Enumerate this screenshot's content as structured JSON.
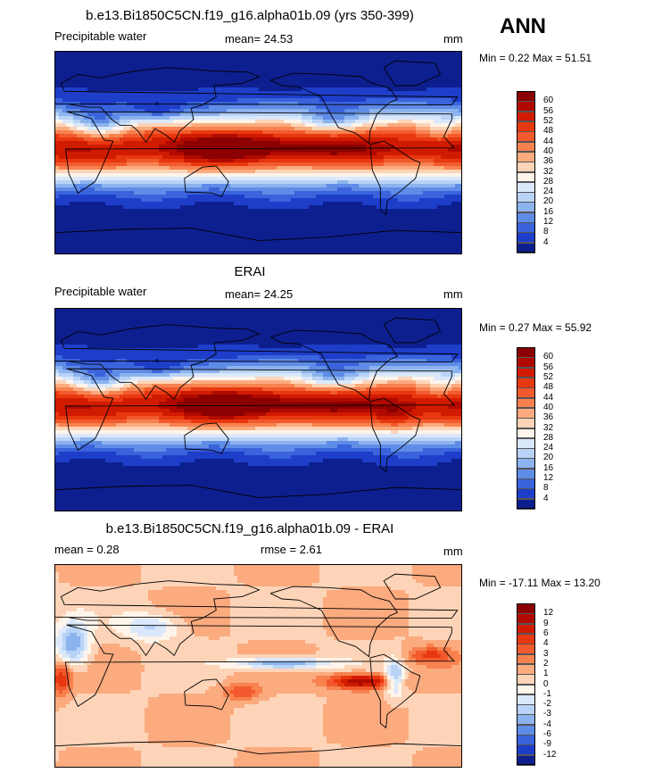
{
  "season": "ANN",
  "panels": [
    {
      "title": "b.e13.Bi1850C5CN.f19_g16.alpha01b.09 (yrs 350-399)",
      "left_label": "Precipitable water",
      "mid_label": "mean=  24.53",
      "units": "mm",
      "minmax": "Min =   0.22 Max =  51.51",
      "colorbar": {
        "labels": [
          "60",
          "56",
          "52",
          "48",
          "44",
          "40",
          "36",
          "32",
          "28",
          "24",
          "20",
          "16",
          "12",
          "8",
          "4"
        ],
        "colors": [
          "#8b0000",
          "#b00a00",
          "#d11b00",
          "#e8380f",
          "#f25a2d",
          "#f7824f",
          "#fbab7e",
          "#fdd4b8",
          "#fff4ea",
          "#dbe8fb",
          "#b8d3f6",
          "#8db3ef",
          "#5f8ce6",
          "#3a63dc",
          "#1e3ec9",
          "#0d1f8f"
        ]
      },
      "map_kind": "model"
    },
    {
      "title": "ERAI",
      "left_label": "Precipitable water",
      "mid_label": "mean=  24.25",
      "units": "mm",
      "minmax": "Min =   0.27 Max =  55.92",
      "colorbar": {
        "labels": [
          "60",
          "56",
          "52",
          "48",
          "44",
          "40",
          "36",
          "32",
          "28",
          "24",
          "20",
          "16",
          "12",
          "8",
          "4"
        ],
        "colors": [
          "#8b0000",
          "#b00a00",
          "#d11b00",
          "#e8380f",
          "#f25a2d",
          "#f7824f",
          "#fbab7e",
          "#fdd4b8",
          "#fff4ea",
          "#dbe8fb",
          "#b8d3f6",
          "#8db3ef",
          "#5f8ce6",
          "#3a63dc",
          "#1e3ec9",
          "#0d1f8f"
        ]
      },
      "map_kind": "obs"
    },
    {
      "title": "b.e13.Bi1850C5CN.f19_g16.alpha01b.09 - ERAI",
      "left_label": "mean =   0.28",
      "mid_label": "rmse =   2.61",
      "units": "mm",
      "minmax": "Min = -17.11 Max =  13.20",
      "colorbar": {
        "labels": [
          "12",
          "9",
          "6",
          "4",
          "3",
          "2",
          "1",
          "0",
          "-1",
          "-2",
          "-3",
          "-4",
          "-6",
          "-9",
          "-12"
        ],
        "colors": [
          "#8b0000",
          "#b00a00",
          "#d11b00",
          "#e8380f",
          "#f25a2d",
          "#f7824f",
          "#fbab7e",
          "#fdd4b8",
          "#fff4ea",
          "#dbe8fb",
          "#b8d3f6",
          "#8db3ef",
          "#5f8ce6",
          "#3a63dc",
          "#1e3ec9",
          "#0d1f8f"
        ]
      },
      "map_kind": "diff"
    }
  ]
}
